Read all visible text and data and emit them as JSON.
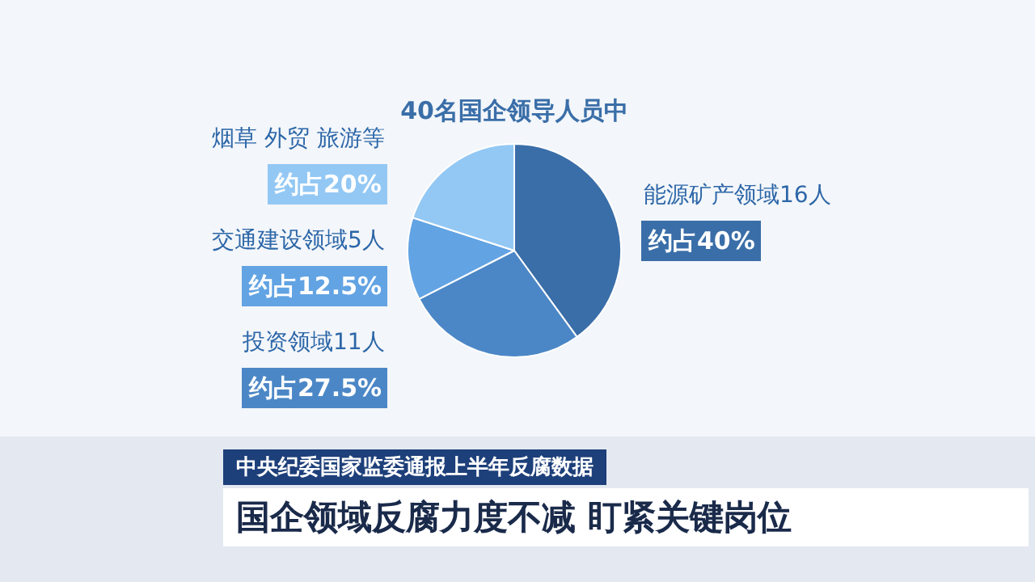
{
  "chart_data": {
    "type": "pie",
    "title": "40名国企领导人员中",
    "categories": [
      "能源矿产领域16人",
      "投资领域11人",
      "交通建设领域5人",
      "烟草 外贸 旅游等"
    ],
    "values": [
      40,
      27.5,
      12.5,
      20
    ],
    "value_labels": [
      "约占40%",
      "约占27.5%",
      "约占12.5%",
      "约占20%"
    ],
    "colors": [
      "#3a6ea8",
      "#4b87c6",
      "#62a3e3",
      "#93c8f4"
    ],
    "legend": false,
    "annotations": [
      "中央纪委国家监委通报上半年反腐数据",
      "国企领域反腐力度不减 盯紧关键岗位"
    ]
  }
}
